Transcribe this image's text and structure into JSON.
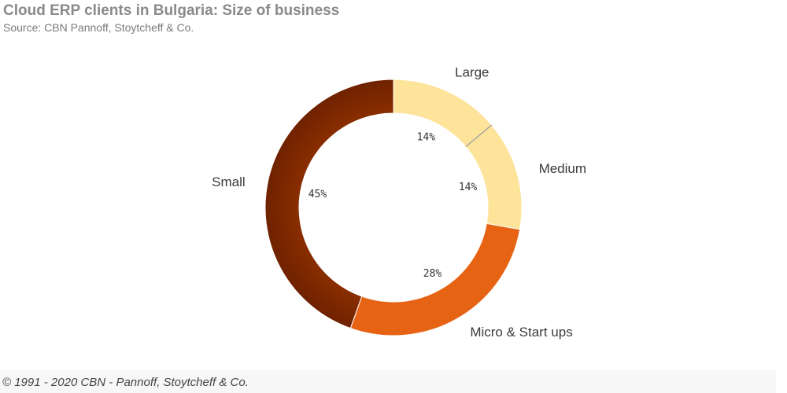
{
  "header": {
    "title": "Cloud ERP clients in Bulgaria: Size of business",
    "subtitle": "Source: CBN Pannoff, Stoytcheff & Co."
  },
  "footer": {
    "copyright": "© 1991 - 2020 CBN - Pannoff, Stoytcheff & Co."
  },
  "chart_data": {
    "type": "pie",
    "subtype": "donut",
    "title": "Cloud ERP clients in Bulgaria: Size of business",
    "subtitle": "Source: CBN Pannoff, Stoytcheff & Co.",
    "categories": [
      "Large",
      "Medium",
      "Micro & Start ups",
      "Small"
    ],
    "values": [
      14,
      14,
      28,
      45
    ],
    "value_labels": [
      "14%",
      "14%",
      "28%",
      "45%"
    ],
    "colors": [
      "#fde49a",
      "#fde49a",
      "#e66314",
      "#7a2600"
    ],
    "legend": "none",
    "start": "top",
    "direction": "clockwise"
  }
}
